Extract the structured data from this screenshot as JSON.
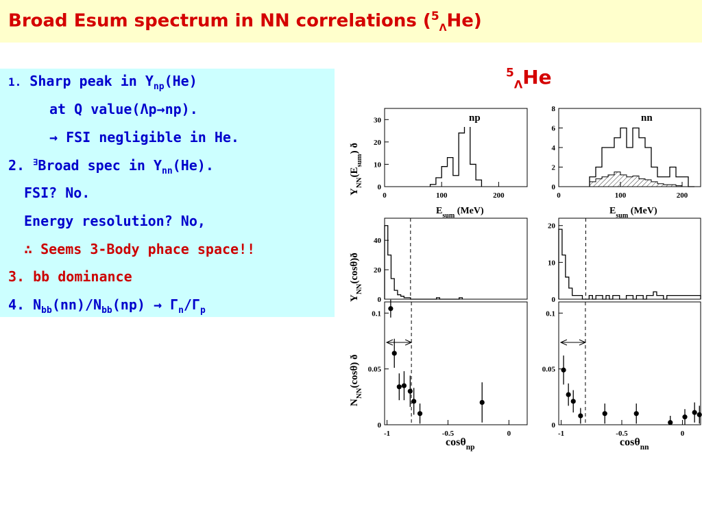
{
  "title": {
    "main": "Broad Esum spectrum in NN correlations (",
    "sup": "5",
    "sub": "Λ",
    "tail": "He)"
  },
  "hypernucleus": {
    "sup": "5",
    "sub": "Λ",
    "base": "He"
  },
  "points": {
    "p1": {
      "num": "1.",
      "text": " Sharp peak in Y",
      "sub": "np",
      "tail": "(He)"
    },
    "p1b": "at Q value(Λp→np).",
    "p1c": "→ FSI negligible in He.",
    "p2": {
      "num": "2.",
      "mark": "∃",
      "text": "Broad spec in Y",
      "sub": "nn",
      "tail": "(He)."
    },
    "p2a": "FSI? No.",
    "p2b": "Energy resolution? No,",
    "p2c": "∴ Seems 3-Body phace space!!",
    "p3": "3. bb dominance",
    "p4": {
      "a": "4. N",
      "sub1": "bb",
      "b": "(nn)/N",
      "sub2": "bb",
      "c": "(np) → Γ",
      "sub3": "n",
      "d": "/Γ",
      "sub4": "p"
    }
  },
  "chart_data": [
    {
      "type": "histogram",
      "panel": "top-left",
      "corner_label": "np",
      "xlabel": "E",
      "xlabel_sub": "sum",
      "xlabel_unit": "(MeV)",
      "ylabel": "Y",
      "ylabel_sub": "NN",
      "ylabel_arg": "(E",
      "ylabel_arg_sub": "sum",
      "ylabel_arg_close": ")",
      "ylabel_extra": "ð",
      "xlim": [
        0,
        250
      ],
      "ylim": [
        0,
        35
      ],
      "xticks": [
        "0",
        "100",
        "200"
      ],
      "yticks": [
        "0",
        "10",
        "20",
        "30"
      ],
      "bin_width": 10,
      "bins_start": [
        80,
        90,
        100,
        110,
        120,
        130,
        140,
        150,
        160
      ],
      "values": [
        1,
        4,
        9,
        13,
        5,
        24,
        28,
        10,
        3
      ]
    },
    {
      "type": "histogram",
      "panel": "top-right",
      "corner_label": "nn",
      "xlabel": "E",
      "xlabel_sub": "sum",
      "xlabel_unit": "(MeV)",
      "xlim": [
        0,
        230
      ],
      "ylim": [
        0,
        8
      ],
      "xticks": [
        "0",
        "100",
        "200"
      ],
      "yticks": [
        "0",
        "2",
        "4",
        "6",
        "8"
      ],
      "bin_width": 10,
      "bins_start": [
        50,
        60,
        70,
        80,
        90,
        100,
        110,
        120,
        130,
        140,
        150,
        160,
        170,
        180,
        190,
        200,
        210
      ],
      "series": [
        {
          "name": "",
          "values": [
            1,
            2,
            4,
            4,
            5,
            6,
            4,
            6,
            5,
            4,
            2,
            1,
            1,
            2,
            1,
            1,
            0
          ]
        },
        {
          "name": "",
          "values": [
            0.5,
            0.8,
            1.0,
            1.2,
            1.5,
            1.2,
            1.0,
            1.1,
            0.8,
            0.7,
            0.5,
            0.3,
            0.2,
            0.2,
            0.1,
            0,
            0
          ]
        }
      ]
    },
    {
      "type": "histogram",
      "panel": "middle-left",
      "ylabel": "Y",
      "ylabel_sub": "NN",
      "ylabel_arg": "(cosθ)ð",
      "xlim": [
        -1,
        0.1
      ],
      "ylim": [
        0,
        55
      ],
      "yticks": [
        "0",
        "20",
        "40"
      ],
      "cut_cos": -0.8,
      "bin_width": 0.025,
      "values": [
        50,
        30,
        14,
        6,
        3,
        2,
        1,
        1,
        0,
        0,
        0,
        0,
        0,
        0,
        0,
        0,
        1,
        0,
        0,
        0,
        0,
        0,
        0,
        1
      ]
    },
    {
      "type": "histogram",
      "panel": "middle-right",
      "xlim": [
        -1,
        0.05
      ],
      "ylim": [
        0,
        22
      ],
      "yticks": [
        "0",
        "10",
        "20"
      ],
      "cut_cos": -0.8,
      "bin_width": 0.025,
      "values": [
        19,
        12,
        6,
        3,
        1,
        1,
        1,
        0,
        0,
        1,
        0,
        1,
        1,
        0,
        1,
        0,
        1,
        1,
        0,
        0,
        1,
        1,
        0,
        1,
        1,
        0,
        1,
        1,
        2,
        1,
        1,
        0,
        1,
        1,
        1,
        1,
        1,
        1,
        1,
        1,
        1,
        1
      ]
    },
    {
      "type": "scatter",
      "panel": "bottom-left",
      "ylabel": "N",
      "ylabel_sub": "NN",
      "ylabel_arg": "(cosθ)  ð",
      "xlabel": "cosθ",
      "xlabel_sub": "np",
      "xlim": [
        -1.02,
        0.15
      ],
      "ylim": [
        0,
        0.11
      ],
      "xticks": [
        "-1",
        "-0.5",
        "0"
      ],
      "yticks": [
        "0",
        "0.05",
        "0.1"
      ],
      "cut_cos": -0.8,
      "points": [
        {
          "x": -0.97,
          "y": 0.104,
          "err": 0.008
        },
        {
          "x": -0.94,
          "y": 0.064,
          "err": 0.013
        },
        {
          "x": -0.9,
          "y": 0.034,
          "err": 0.012
        },
        {
          "x": -0.86,
          "y": 0.035,
          "err": 0.013
        },
        {
          "x": -0.81,
          "y": 0.03,
          "err": 0.014
        },
        {
          "x": -0.78,
          "y": 0.021,
          "err": 0.012
        },
        {
          "x": -0.73,
          "y": 0.01,
          "err": 0.009
        },
        {
          "x": -0.22,
          "y": 0.02,
          "err": 0.018
        }
      ]
    },
    {
      "type": "scatter",
      "panel": "bottom-right",
      "xlabel": "cosθ",
      "xlabel_sub": "nn",
      "xlim": [
        -1.02,
        0.15
      ],
      "ylim": [
        0,
        0.11
      ],
      "xticks": [
        "-1",
        "-0.5",
        "0"
      ],
      "yticks": [
        "0",
        "0.05",
        "0.1"
      ],
      "cut_cos": -0.8,
      "points": [
        {
          "x": -0.98,
          "y": 0.049,
          "err": 0.013
        },
        {
          "x": -0.94,
          "y": 0.027,
          "err": 0.01
        },
        {
          "x": -0.9,
          "y": 0.021,
          "err": 0.01
        },
        {
          "x": -0.84,
          "y": 0.008,
          "err": 0.007
        },
        {
          "x": -0.64,
          "y": 0.01,
          "err": 0.009
        },
        {
          "x": -0.38,
          "y": 0.01,
          "err": 0.009
        },
        {
          "x": -0.1,
          "y": 0.002,
          "err": 0.006
        },
        {
          "x": 0.02,
          "y": 0.007,
          "err": 0.007
        },
        {
          "x": 0.1,
          "y": 0.011,
          "err": 0.009
        },
        {
          "x": 0.14,
          "y": 0.009,
          "err": 0.008
        }
      ]
    }
  ],
  "colors": {
    "title_red": "#d40000",
    "title_bg": "#ffffcc",
    "text_box_bg": "#ccffff",
    "text_blue": "#0000cc",
    "text_red": "#cc0000"
  }
}
